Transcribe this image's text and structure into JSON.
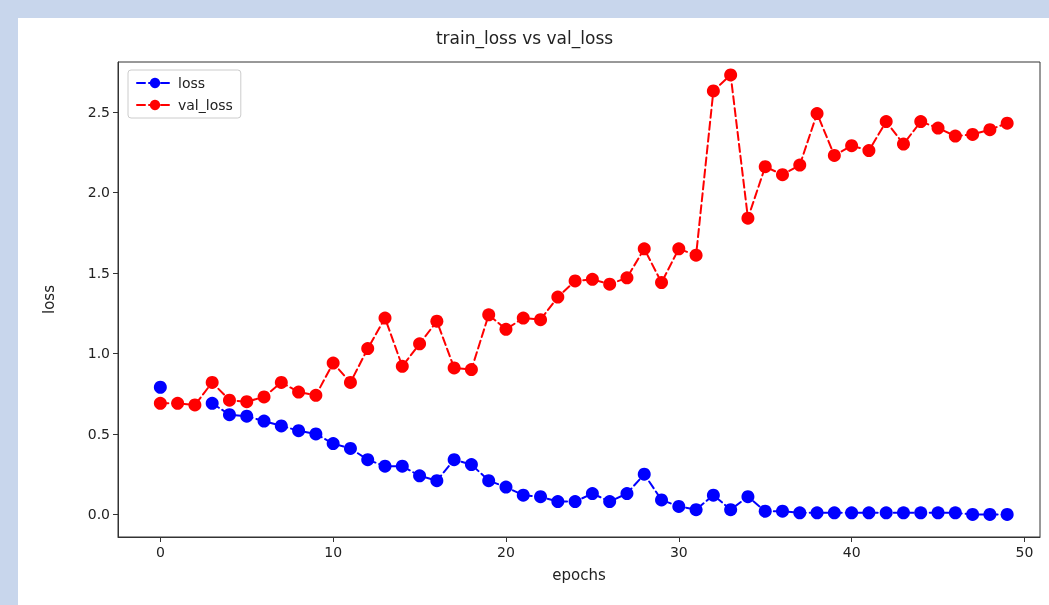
{
  "chart_data": {
    "type": "line",
    "title": "train_loss vs val_loss",
    "xlabel": "epochs",
    "ylabel": "loss",
    "x": [
      0,
      1,
      2,
      3,
      4,
      5,
      6,
      7,
      8,
      9,
      10,
      11,
      12,
      13,
      14,
      15,
      16,
      17,
      18,
      19,
      20,
      21,
      22,
      23,
      24,
      25,
      26,
      27,
      28,
      29,
      30,
      31,
      32,
      33,
      34,
      35,
      36,
      37,
      38,
      39,
      40,
      41,
      42,
      43,
      44,
      45,
      46,
      47,
      48,
      49
    ],
    "series": [
      {
        "name": "loss",
        "color": "#0000ff",
        "values": [
          0.79,
          null,
          null,
          0.69,
          0.62,
          0.61,
          0.58,
          0.55,
          0.52,
          0.5,
          0.44,
          0.41,
          0.34,
          0.3,
          0.3,
          0.24,
          0.21,
          0.34,
          0.31,
          0.21,
          0.17,
          0.12,
          0.11,
          0.08,
          0.08,
          0.13,
          0.08,
          0.13,
          0.25,
          0.09,
          0.05,
          0.03,
          0.12,
          0.03,
          0.11,
          0.02,
          0.02,
          0.01,
          0.01,
          0.01,
          0.01,
          0.01,
          0.01,
          0.01,
          0.01,
          0.01,
          0.01,
          0.0,
          0.0,
          0.0
        ]
      },
      {
        "name": "val_loss",
        "color": "#ff0000",
        "values": [
          0.69,
          0.69,
          0.68,
          0.82,
          0.71,
          0.7,
          0.73,
          0.82,
          0.76,
          0.74,
          0.94,
          0.82,
          1.03,
          1.22,
          0.92,
          1.06,
          1.2,
          0.91,
          0.9,
          1.24,
          1.15,
          1.22,
          1.21,
          1.35,
          1.45,
          1.46,
          1.43,
          1.47,
          1.65,
          1.44,
          1.65,
          1.61,
          2.63,
          2.73,
          1.84,
          2.16,
          2.11,
          2.17,
          2.49,
          2.23,
          2.29,
          2.26,
          2.44,
          2.3,
          2.44,
          2.4,
          2.35,
          2.36,
          2.39,
          2.43
        ]
      }
    ],
    "xlim": [
      -2.45,
      50.9
    ],
    "xticks": [
      0,
      10,
      20,
      30,
      40,
      50
    ],
    "ylim": [
      -0.14,
      2.81
    ],
    "yticks": [
      {
        "value": 0,
        "label": "0.0"
      },
      {
        "value": 0.5,
        "label": "0.5"
      },
      {
        "value": 1,
        "label": "1.0"
      },
      {
        "value": 1.5,
        "label": "1.5"
      },
      {
        "value": 2,
        "label": "2.0"
      },
      {
        "value": 2.5,
        "label": "2.5"
      }
    ],
    "legend": "top left",
    "marker": "circle",
    "line_style": "dashed",
    "grid": false
  }
}
